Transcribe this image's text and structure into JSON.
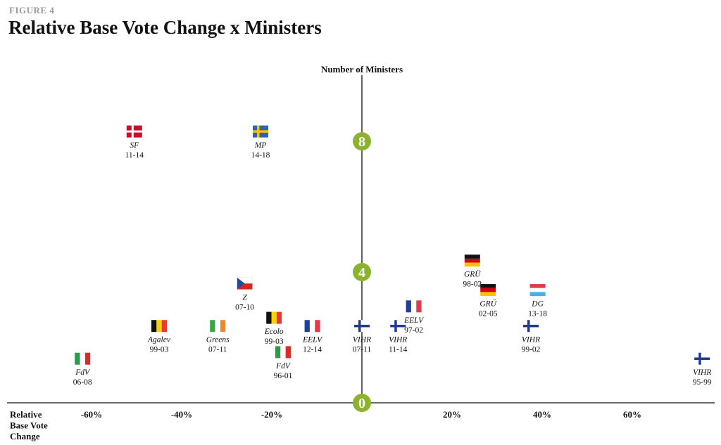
{
  "figure_label": "FIGURE 4",
  "title": "Relative Base Vote Change x Ministers",
  "colors": {
    "axis": "#3a3a3a",
    "tick_marker": "#8cb32d",
    "text": "#111111"
  },
  "chart_data": {
    "type": "scatter",
    "title": "Relative Base Vote Change x Ministers",
    "xlabel": "Relative Base Vote Change",
    "ylabel": "Number of Ministers",
    "x_unit": "%",
    "xlim": [
      -80,
      80
    ],
    "ylim": [
      0,
      10
    ],
    "x_ticks": [
      {
        "value": -60,
        "label": "-60%"
      },
      {
        "value": -40,
        "label": "-40%"
      },
      {
        "value": -20,
        "label": "-20%"
      },
      {
        "value": 20,
        "label": "20%"
      },
      {
        "value": 40,
        "label": "40%"
      },
      {
        "value": 60,
        "label": "60%"
      }
    ],
    "y_ticks": [
      {
        "value": 0,
        "label": "0"
      },
      {
        "value": 4,
        "label": "4"
      },
      {
        "value": 8,
        "label": "8"
      }
    ],
    "grid": false,
    "points": [
      {
        "party": "SF",
        "period": "11-14",
        "flag": "denmark",
        "x": -50.5,
        "y": 8.3
      },
      {
        "party": "MP",
        "period": "14-18",
        "flag": "sweden",
        "x": -22.5,
        "y": 8.3
      },
      {
        "party": "Z",
        "period": "07-10",
        "flag": "czechia",
        "x": -26,
        "y": 3.65
      },
      {
        "party": "Ecolo",
        "period": "99-03",
        "flag": "belgium",
        "x": -19.5,
        "y": 2.6
      },
      {
        "party": "Agalev",
        "period": "99-03",
        "flag": "belgium",
        "x": -45,
        "y": 2.35
      },
      {
        "party": "Greens",
        "period": "07-11",
        "flag": "ireland",
        "x": -32,
        "y": 2.35
      },
      {
        "party": "EELV",
        "period": "12-14",
        "flag": "france",
        "x": -11,
        "y": 2.35
      },
      {
        "party": "VIHR",
        "period": "07-11",
        "flag": "finland",
        "x": 0,
        "y": 2.35
      },
      {
        "party": "VIHR",
        "period": "11-14",
        "flag": "finland",
        "x": 8,
        "y": 2.35
      },
      {
        "party": "EELV",
        "period": "97-02",
        "flag": "france",
        "x": 11.5,
        "y": 2.95
      },
      {
        "party": "GRÜ",
        "period": "98-02",
        "flag": "germany",
        "x": 24.5,
        "y": 4.35
      },
      {
        "party": "GRÜ",
        "period": "02-05",
        "flag": "germany",
        "x": 28,
        "y": 3.45
      },
      {
        "party": "DG",
        "period": "13-18",
        "flag": "luxembourg",
        "x": 39,
        "y": 3.45
      },
      {
        "party": "VIHR",
        "period": "99-02",
        "flag": "finland",
        "x": 37.5,
        "y": 2.35
      },
      {
        "party": "FdV",
        "period": "96-01",
        "flag": "italy",
        "x": -17.5,
        "y": 1.55
      },
      {
        "party": "FdV",
        "period": "06-08",
        "flag": "italy",
        "x": -62,
        "y": 1.35
      },
      {
        "party": "VIHR",
        "period": "95-99",
        "flag": "finland",
        "x": 75.5,
        "y": 1.35
      }
    ]
  }
}
